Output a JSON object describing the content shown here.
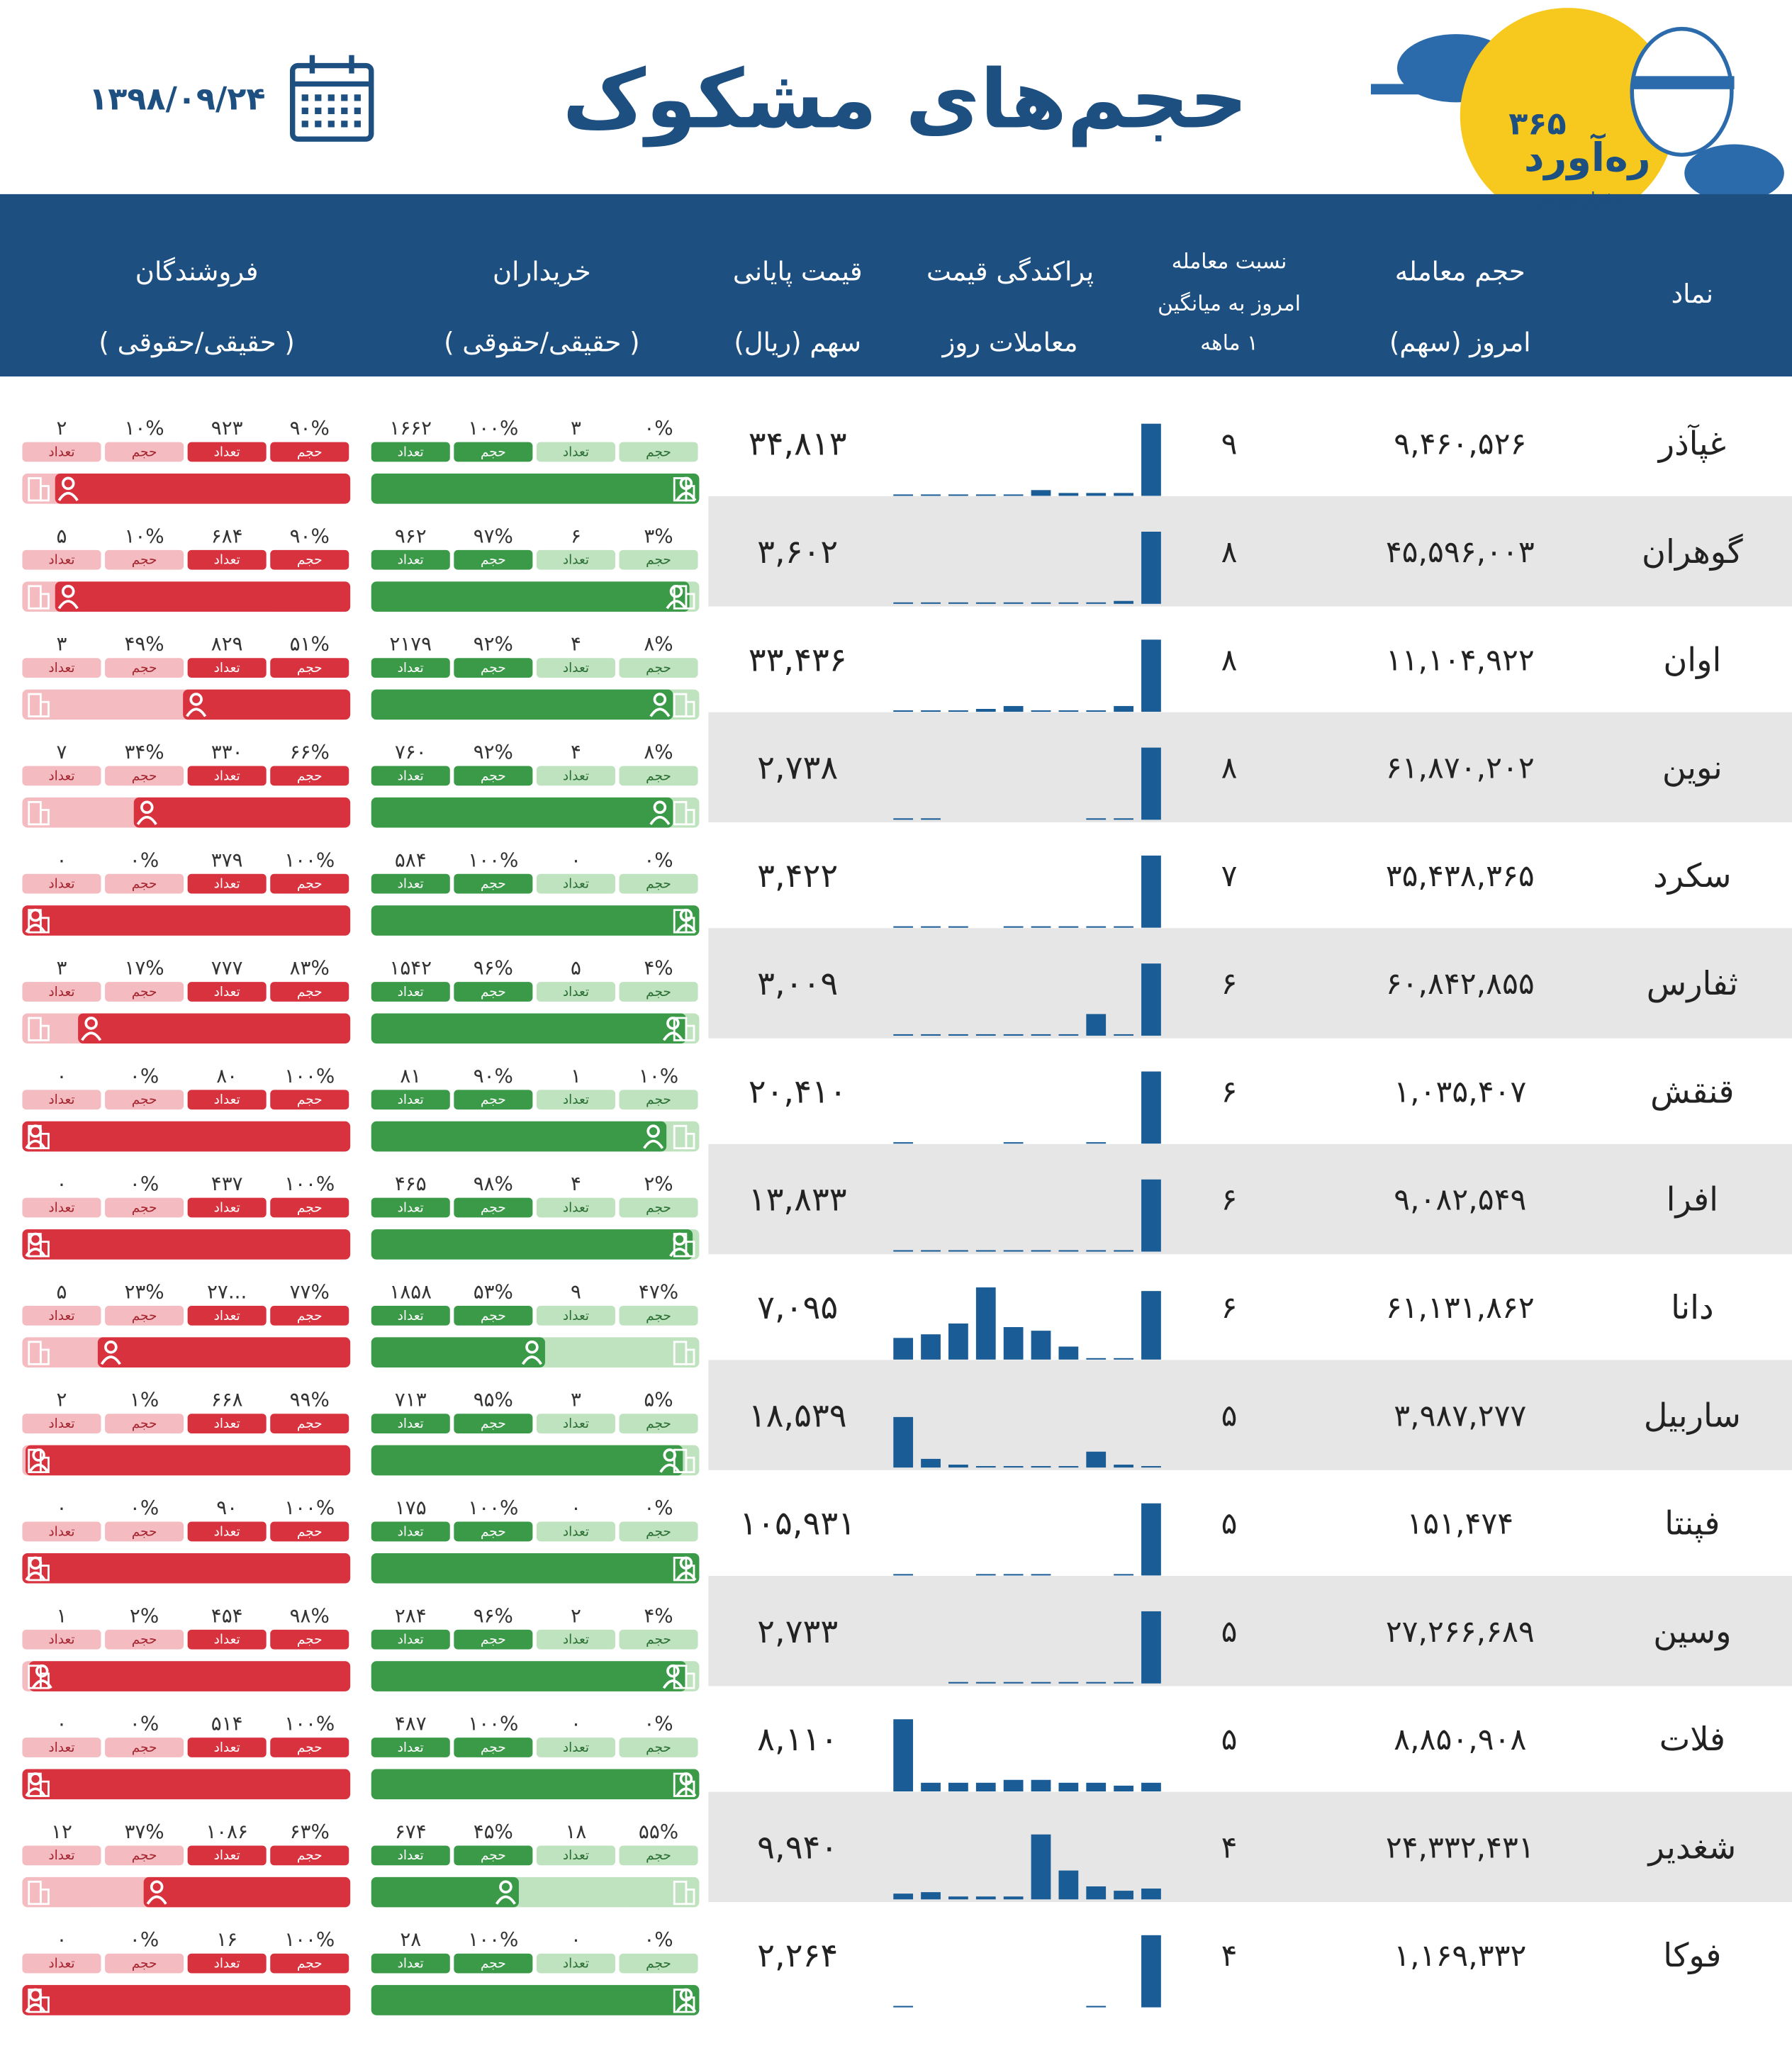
{
  "header": {
    "title": "حجم‌های مشکوک",
    "date": "۱۳۹۸/۰۹/۲۴",
    "logo": {
      "name": "ره‌آورد",
      "number": "۳۶۵",
      "slogan": "برفراز بورس"
    }
  },
  "table": {
    "columns": [
      [
        "نماد"
      ],
      [
        "حجم معامله",
        "امروز (سهم)"
      ],
      [
        "نسبت معامله",
        "امروز به میانگین",
        "۱ ماهه"
      ],
      [
        "پراکندگی قیمت",
        "معاملات روز"
      ],
      [
        "قیمت پایانی",
        "سهم (ریال)"
      ],
      [
        "خریداران",
        "( حقیقی/حقوقی )"
      ],
      [
        "فروشندگان",
        "( حقیقی/حقوقی )"
      ]
    ],
    "cell_labels": [
      "تعداد",
      "حجم",
      "تعداد",
      "حجم"
    ],
    "hist_ylim": [
      0,
      100
    ],
    "rows": [
      {
        "symbol": "غپآذر",
        "volume": "۹,۴۶۰,۵۲۶",
        "ratio": "۹",
        "hist": [
          2,
          2,
          2,
          2,
          2,
          8,
          4,
          4,
          4,
          100
        ],
        "price": "۳۴,۸۱۳",
        "buyers": [
          "۱۶۶۲",
          "۱۰۰%",
          "۳",
          "۰%"
        ],
        "sellers": [
          "۲",
          "۱۰%",
          "۹۲۳",
          "۹۰%"
        ]
      },
      {
        "symbol": "گوهران",
        "volume": "۴۵,۵۹۶,۰۰۳",
        "ratio": "۸",
        "hist": [
          2,
          2,
          2,
          2,
          2,
          2,
          2,
          2,
          4,
          100
        ],
        "price": "۳,۶۰۲",
        "buyers": [
          "۹۶۲",
          "۹۷%",
          "۶",
          "۳%"
        ],
        "sellers": [
          "۵",
          "۱۰%",
          "۶۸۴",
          "۹۰%"
        ]
      },
      {
        "symbol": "اوان",
        "volume": "۱۱,۱۰۴,۹۲۲",
        "ratio": "۸",
        "hist": [
          2,
          2,
          2,
          4,
          8,
          2,
          2,
          2,
          8,
          100
        ],
        "price": "۳۳,۴۳۶",
        "buyers": [
          "۲۱۷۹",
          "۹۲%",
          "۴",
          "۸%"
        ],
        "sellers": [
          "۳",
          "۴۹%",
          "۸۲۹",
          "۵۱%"
        ]
      },
      {
        "symbol": "نوین",
        "volume": "۶۱,۸۷۰,۲۰۲",
        "ratio": "۸",
        "hist": [
          2,
          2,
          0,
          0,
          0,
          0,
          0,
          2,
          2,
          100
        ],
        "price": "۲,۷۳۸",
        "buyers": [
          "۷۶۰",
          "۹۲%",
          "۴",
          "۸%"
        ],
        "sellers": [
          "۷",
          "۳۴%",
          "۳۳۰",
          "۶۶%"
        ]
      },
      {
        "symbol": "سکرد",
        "volume": "۳۵,۴۳۸,۳۶۵",
        "ratio": "۷",
        "hist": [
          2,
          2,
          2,
          0,
          2,
          2,
          2,
          2,
          2,
          100
        ],
        "price": "۳,۴۲۲",
        "buyers": [
          "۵۸۴",
          "۱۰۰%",
          "۰",
          "۰%"
        ],
        "sellers": [
          "۰",
          "۰%",
          "۳۷۹",
          "۱۰۰%"
        ]
      },
      {
        "symbol": "ثفارس",
        "volume": "۶۰,۸۴۲,۸۵۵",
        "ratio": "۶",
        "hist": [
          2,
          2,
          2,
          2,
          2,
          2,
          2,
          30,
          2,
          100
        ],
        "price": "۳,۰۰۹",
        "buyers": [
          "۱۵۴۲",
          "۹۶%",
          "۵",
          "۴%"
        ],
        "sellers": [
          "۳",
          "۱۷%",
          "۷۷۷",
          "۸۳%"
        ]
      },
      {
        "symbol": "قنقش",
        "volume": "۱,۰۳۵,۴۰۷",
        "ratio": "۶",
        "hist": [
          2,
          0,
          0,
          0,
          2,
          0,
          0,
          2,
          0,
          100
        ],
        "price": "۲۰,۴۱۰",
        "buyers": [
          "۸۱",
          "۹۰%",
          "۱",
          "۱۰%"
        ],
        "sellers": [
          "۰",
          "۰%",
          "۸۰",
          "۱۰۰%"
        ]
      },
      {
        "symbol": "افرا",
        "volume": "۹,۰۸۲,۵۴۹",
        "ratio": "۶",
        "hist": [
          2,
          2,
          2,
          2,
          2,
          2,
          2,
          2,
          2,
          100
        ],
        "price": "۱۳,۸۳۳",
        "buyers": [
          "۴۶۵",
          "۹۸%",
          "۴",
          "۲%"
        ],
        "sellers": [
          "۰",
          "۰%",
          "۴۳۷",
          "۱۰۰%"
        ]
      },
      {
        "symbol": "دانا",
        "volume": "۶۱,۱۳۱,۸۶۲",
        "ratio": "۶",
        "hist": [
          30,
          35,
          50,
          100,
          45,
          40,
          18,
          2,
          2,
          95
        ],
        "price": "۷,۰۹۵",
        "buyers": [
          "۱۸۵۸",
          "۵۳%",
          "۹",
          "۴۷%"
        ],
        "sellers": [
          "۵",
          "۲۳%",
          "۲۷...",
          "۷۷%"
        ]
      },
      {
        "symbol": "ساربیل",
        "volume": "۳,۹۸۷,۲۷۷",
        "ratio": "۵",
        "hist": [
          70,
          12,
          4,
          2,
          2,
          2,
          2,
          22,
          4,
          2
        ],
        "price": "۱۸,۵۳۹",
        "buyers": [
          "۷۱۳",
          "۹۵%",
          "۳",
          "۵%"
        ],
        "sellers": [
          "۲",
          "۱%",
          "۶۶۸",
          "۹۹%"
        ]
      },
      {
        "symbol": "فپنتا",
        "volume": "۱۵۱,۴۷۴",
        "ratio": "۵",
        "hist": [
          2,
          0,
          0,
          2,
          2,
          2,
          0,
          0,
          2,
          100
        ],
        "price": "۱۰۵,۹۳۱",
        "buyers": [
          "۱۷۵",
          "۱۰۰%",
          "۰",
          "۰%"
        ],
        "sellers": [
          "۰",
          "۰%",
          "۹۰",
          "۱۰۰%"
        ]
      },
      {
        "symbol": "وسین",
        "volume": "۲۷,۲۶۶,۶۸۹",
        "ratio": "۵",
        "hist": [
          0,
          0,
          2,
          2,
          2,
          2,
          2,
          2,
          2,
          100
        ],
        "price": "۲,۷۳۳",
        "buyers": [
          "۲۸۴",
          "۹۶%",
          "۲",
          "۴%"
        ],
        "sellers": [
          "۱",
          "۲%",
          "۴۵۴",
          "۹۸%"
        ]
      },
      {
        "symbol": "فلات",
        "volume": "۸,۸۵۰,۹۰۸",
        "ratio": "۵",
        "hist": [
          100,
          12,
          12,
          12,
          16,
          16,
          12,
          12,
          8,
          12
        ],
        "price": "۸,۱۱۰",
        "buyers": [
          "۴۸۷",
          "۱۰۰%",
          "۰",
          "۰%"
        ],
        "sellers": [
          "۰",
          "۰%",
          "۵۱۴",
          "۱۰۰%"
        ]
      },
      {
        "symbol": "شغدیر",
        "volume": "۲۴,۳۳۲,۴۳۱",
        "ratio": "۴",
        "hist": [
          8,
          10,
          4,
          4,
          4,
          90,
          40,
          18,
          12,
          15
        ],
        "price": "۹,۹۴۰",
        "buyers": [
          "۶۷۴",
          "۴۵%",
          "۱۸",
          "۵۵%"
        ],
        "sellers": [
          "۱۲",
          "۳۷%",
          "۱۰۸۶",
          "۶۳%"
        ]
      },
      {
        "symbol": "فوکا",
        "volume": "۱,۱۶۹,۳۳۲",
        "ratio": "۴",
        "hist": [
          2,
          0,
          0,
          0,
          0,
          0,
          0,
          2,
          0,
          100
        ],
        "price": "۲,۲۶۴",
        "buyers": [
          "۲۸",
          "۱۰۰%",
          "۰",
          "۰%"
        ],
        "sellers": [
          "۰",
          "۰%",
          "۱۶",
          "۱۰۰%"
        ]
      }
    ]
  }
}
